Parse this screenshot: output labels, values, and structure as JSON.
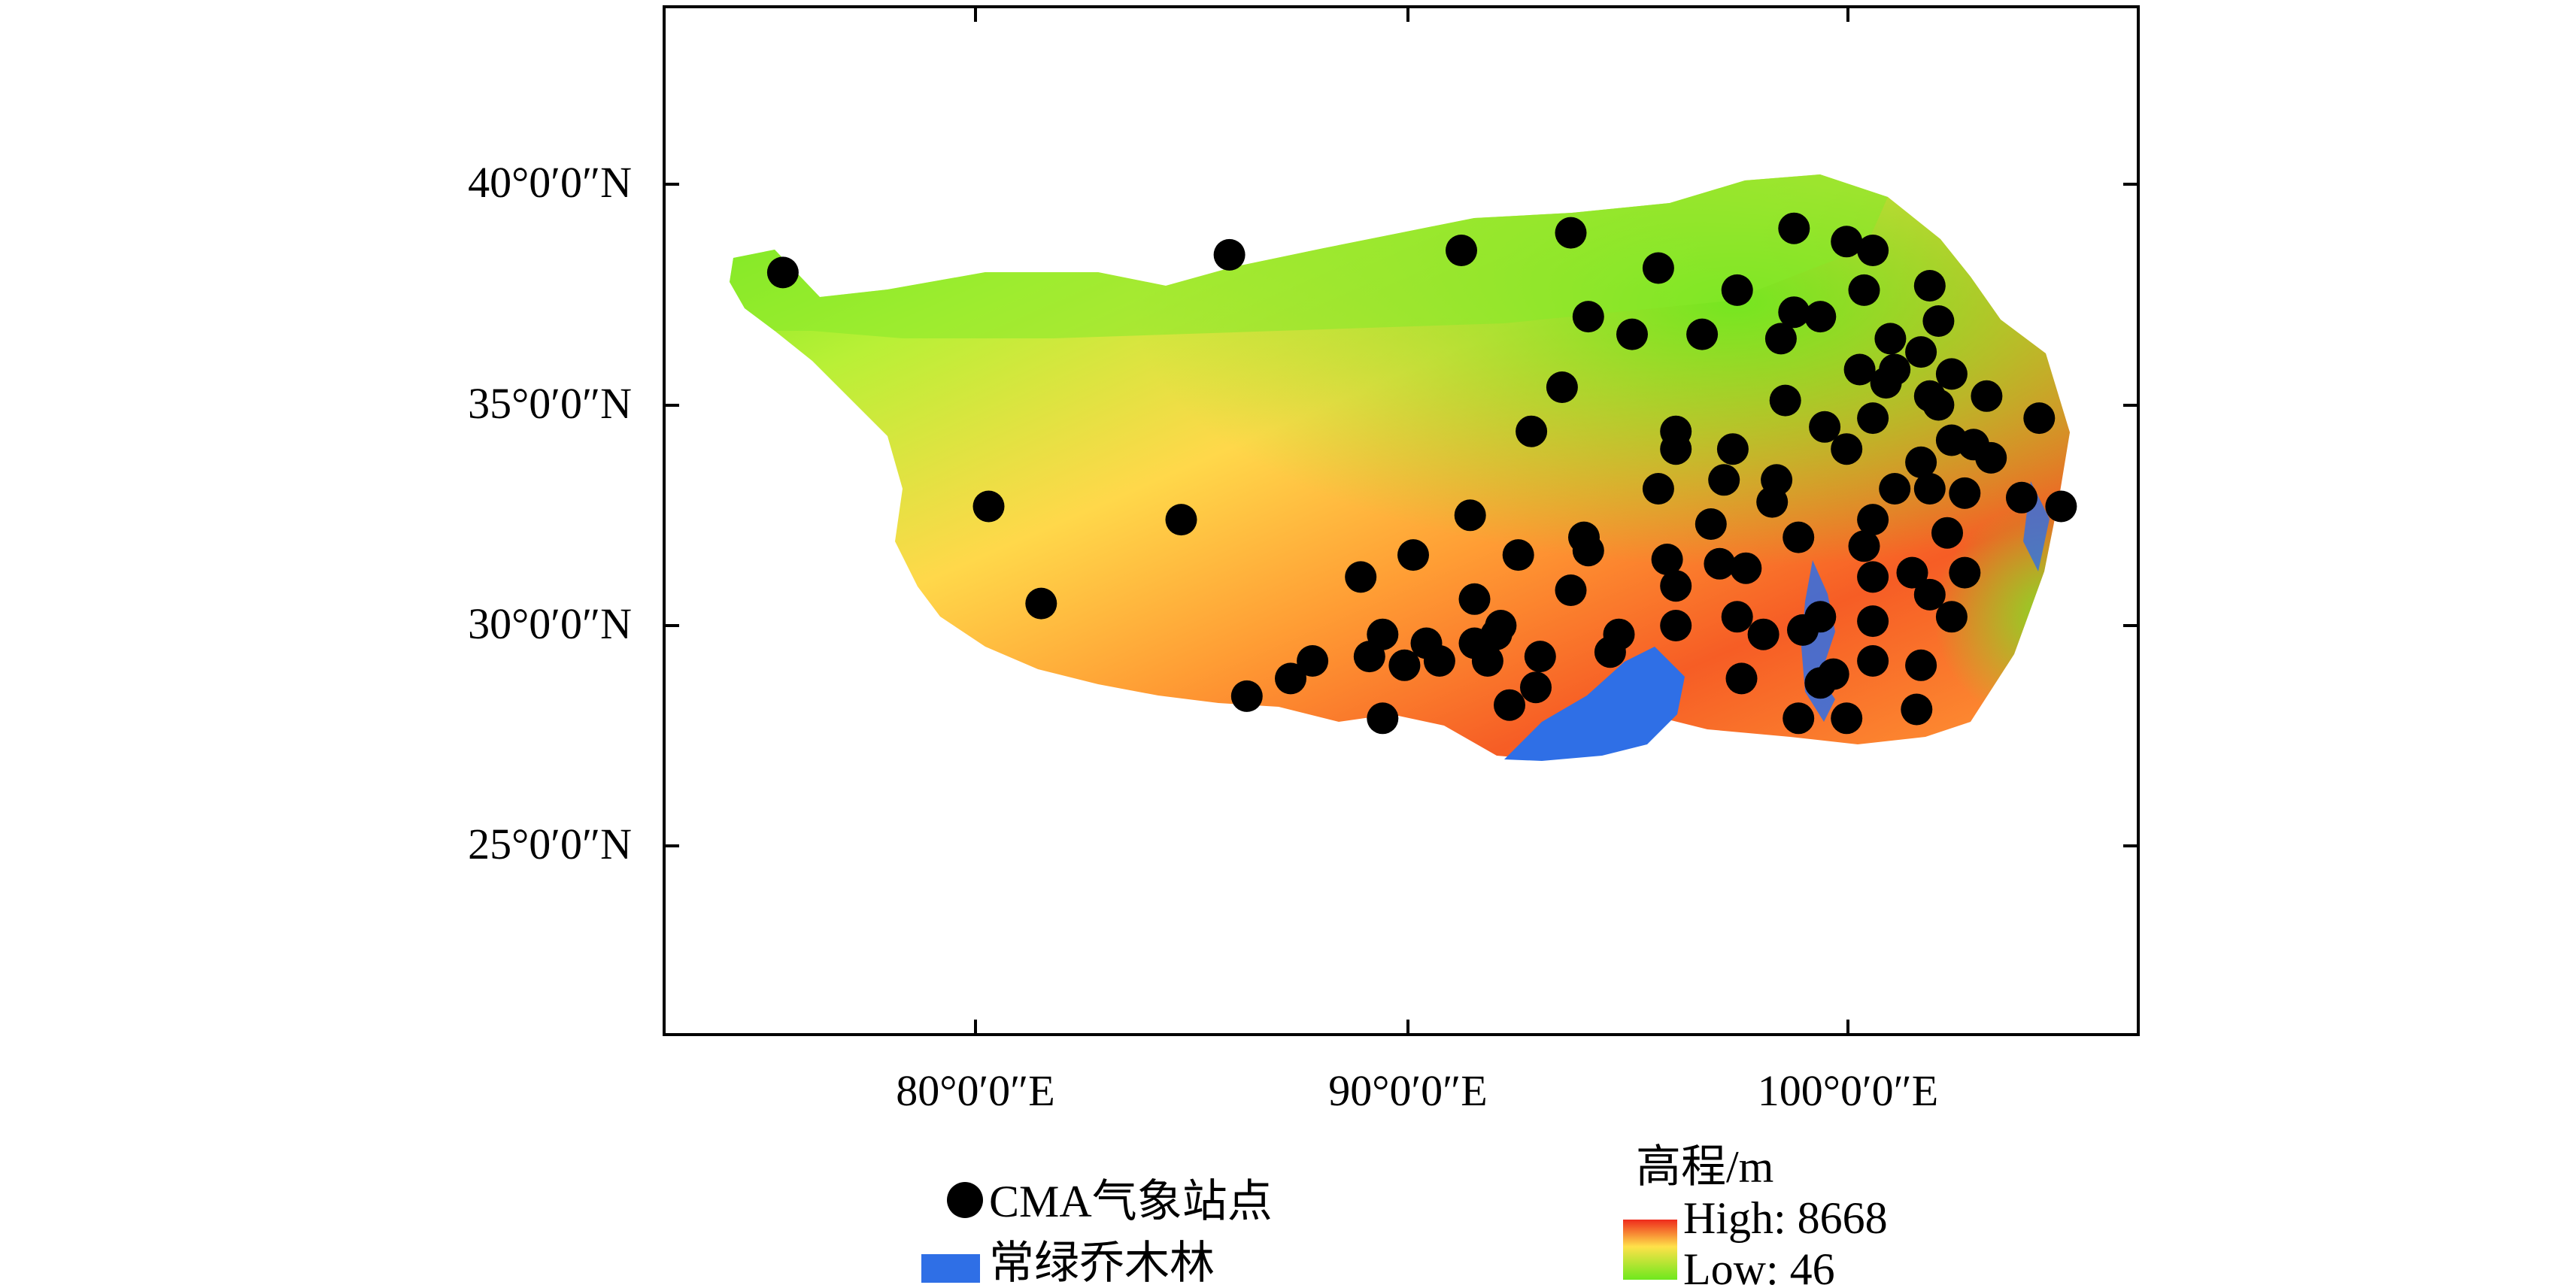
{
  "map": {
    "y_axis_labels": [
      "40°0′0″N",
      "35°0′0″N",
      "30°0′0″N",
      "25°0′0″N"
    ],
    "x_axis_labels": [
      "80°0′0″E",
      "90°0′0″E",
      "100°0′0″E"
    ],
    "lat_range": [
      20.0,
      44.0
    ],
    "lon_range": [
      73.0,
      106.5
    ]
  },
  "legend": {
    "station_label": "CMA气象站点",
    "forest_label": "常绿乔木林",
    "elevation_title": "高程/m",
    "high_label": "High: 8668",
    "low_label": "Low: 46",
    "colors": {
      "station": "#000000",
      "forest": "#2f6fe6",
      "elev_high": "#ee2a1c",
      "elev_mid": "#ffe14a",
      "elev_low": "#6ee81e"
    }
  },
  "stations": [
    [
      75.6,
      38.0
    ],
    [
      85.8,
      38.4
    ],
    [
      91.1,
      38.5
    ],
    [
      93.6,
      38.9
    ],
    [
      95.6,
      38.1
    ],
    [
      98.7,
      39.0
    ],
    [
      99.9,
      38.7
    ],
    [
      100.5,
      38.5
    ],
    [
      101.8,
      37.7
    ],
    [
      100.3,
      37.6
    ],
    [
      97.4,
      37.6
    ],
    [
      98.7,
      37.1
    ],
    [
      99.3,
      37.0
    ],
    [
      102.0,
      36.9
    ],
    [
      94.0,
      37.0
    ],
    [
      95.0,
      36.6
    ],
    [
      96.6,
      36.6
    ],
    [
      98.4,
      36.5
    ],
    [
      100.9,
      36.5
    ],
    [
      101.6,
      36.2
    ],
    [
      101.0,
      35.8
    ],
    [
      102.3,
      35.7
    ],
    [
      100.2,
      35.8
    ],
    [
      100.8,
      35.5
    ],
    [
      101.8,
      35.2
    ],
    [
      93.4,
      35.4
    ],
    [
      98.5,
      35.1
    ],
    [
      103.1,
      35.2
    ],
    [
      104.3,
      34.7
    ],
    [
      100.5,
      34.7
    ],
    [
      102.0,
      35.0
    ],
    [
      92.7,
      34.4
    ],
    [
      96.0,
      34.4
    ],
    [
      99.4,
      34.5
    ],
    [
      99.9,
      34.0
    ],
    [
      102.3,
      34.2
    ],
    [
      102.8,
      34.1
    ],
    [
      97.3,
      34.0
    ],
    [
      96.0,
      34.0
    ],
    [
      101.6,
      33.7
    ],
    [
      103.2,
      33.8
    ],
    [
      95.6,
      33.1
    ],
    [
      97.1,
      33.3
    ],
    [
      98.3,
      33.3
    ],
    [
      101.0,
      33.1
    ],
    [
      101.8,
      33.1
    ],
    [
      102.6,
      33.0
    ],
    [
      103.9,
      32.9
    ],
    [
      104.8,
      32.7
    ],
    [
      80.3,
      32.7
    ],
    [
      84.7,
      32.4
    ],
    [
      91.3,
      32.5
    ],
    [
      93.9,
      32.0
    ],
    [
      96.8,
      32.3
    ],
    [
      98.2,
      32.8
    ],
    [
      100.5,
      32.4
    ],
    [
      102.2,
      32.1
    ],
    [
      98.8,
      32.0
    ],
    [
      90.0,
      31.6
    ],
    [
      92.4,
      31.6
    ],
    [
      94.0,
      31.7
    ],
    [
      95.8,
      31.5
    ],
    [
      97.0,
      31.4
    ],
    [
      97.6,
      31.3
    ],
    [
      100.3,
      31.8
    ],
    [
      101.4,
      31.2
    ],
    [
      102.6,
      31.2
    ],
    [
      100.5,
      31.1
    ],
    [
      88.8,
      31.1
    ],
    [
      93.6,
      30.8
    ],
    [
      96.0,
      30.9
    ],
    [
      91.4,
      30.6
    ],
    [
      101.8,
      30.7
    ],
    [
      81.5,
      30.5
    ],
    [
      97.4,
      30.2
    ],
    [
      99.3,
      30.2
    ],
    [
      100.5,
      30.1
    ],
    [
      102.3,
      30.2
    ],
    [
      96.0,
      30.0
    ],
    [
      89.3,
      29.8
    ],
    [
      90.3,
      29.6
    ],
    [
      91.4,
      29.6
    ],
    [
      91.9,
      29.8
    ],
    [
      92.0,
      30.0
    ],
    [
      94.7,
      29.8
    ],
    [
      98.0,
      29.8
    ],
    [
      98.9,
      29.9
    ],
    [
      89.0,
      29.3
    ],
    [
      90.6,
      29.2
    ],
    [
      91.7,
      29.2
    ],
    [
      92.9,
      29.3
    ],
    [
      94.5,
      29.4
    ],
    [
      87.7,
      29.2
    ],
    [
      89.8,
      29.1
    ],
    [
      99.3,
      28.7
    ],
    [
      87.2,
      28.8
    ],
    [
      97.5,
      28.8
    ],
    [
      99.6,
      28.9
    ],
    [
      92.8,
      28.6
    ],
    [
      100.5,
      29.2
    ],
    [
      101.6,
      29.1
    ],
    [
      86.2,
      28.4
    ],
    [
      92.2,
      28.2
    ],
    [
      89.3,
      27.9
    ],
    [
      98.8,
      27.9
    ],
    [
      99.9,
      27.9
    ],
    [
      101.5,
      28.1
    ]
  ]
}
